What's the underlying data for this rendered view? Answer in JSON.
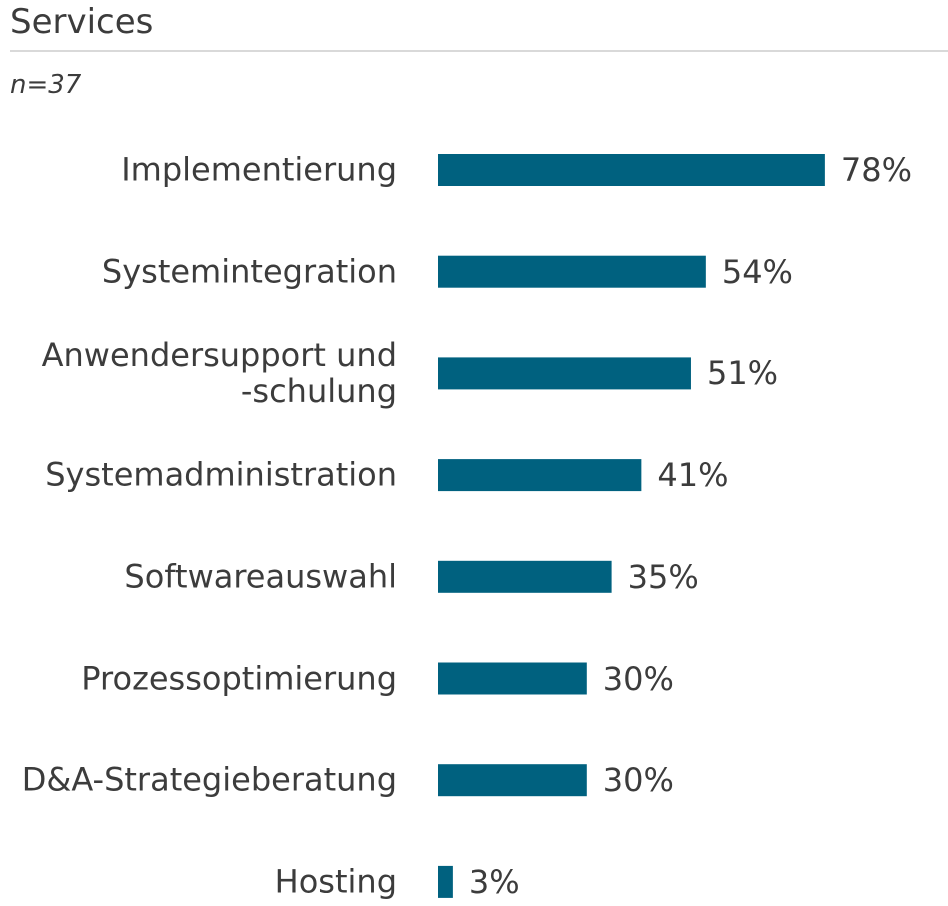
{
  "chart_data": {
    "type": "bar",
    "orientation": "horizontal",
    "title": "Services",
    "subtitle": "n=37",
    "categories": [
      "Implementierung",
      "Systemintegration",
      "Anwendersupport und\n-schulung",
      "Systemadministration",
      "Softwareauswahl",
      "Prozessoptimierung",
      "D&A-Strategieberatung",
      "Hosting"
    ],
    "values": [
      78,
      54,
      51,
      41,
      35,
      30,
      30,
      3
    ],
    "value_labels": [
      "78%",
      "54%",
      "51%",
      "41%",
      "35%",
      "30%",
      "30%",
      "3%"
    ],
    "color": "#00617f"
  }
}
